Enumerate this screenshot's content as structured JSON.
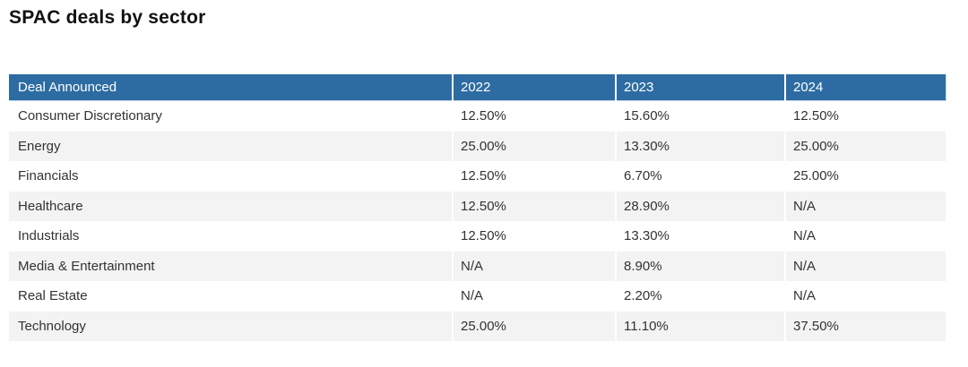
{
  "page": {
    "title": "SPAC deals by sector"
  },
  "chart_data": {
    "type": "table",
    "title": "SPAC deals by sector",
    "columns": [
      "Deal Announced",
      "2022",
      "2023",
      "2024"
    ],
    "rows": [
      [
        "Consumer Discretionary",
        "12.50%",
        "15.60%",
        "12.50%"
      ],
      [
        "Energy",
        "25.00%",
        "13.30%",
        "25.00%"
      ],
      [
        "Financials",
        "12.50%",
        "6.70%",
        "25.00%"
      ],
      [
        "Healthcare",
        "12.50%",
        "28.90%",
        "N/A"
      ],
      [
        "Industrials",
        "12.50%",
        "13.30%",
        "N/A"
      ],
      [
        "Media & Entertainment",
        "N/A",
        "8.90%",
        "N/A"
      ],
      [
        "Real Estate",
        "N/A",
        "2.20%",
        "N/A"
      ],
      [
        "Technology",
        "25.00%",
        "11.10%",
        "37.50%"
      ]
    ],
    "layout": {
      "zebra_striping": true,
      "striped_rows": "even",
      "header_position": "top"
    }
  },
  "colors": {
    "header_bg": "#2d6ca2",
    "header_text": "#ffffff",
    "header_border": "#c9d9e8",
    "stripe_bg": "#f3f3f3",
    "body_text": "#333333",
    "title_text": "#111111",
    "page_bg": "#ffffff"
  }
}
